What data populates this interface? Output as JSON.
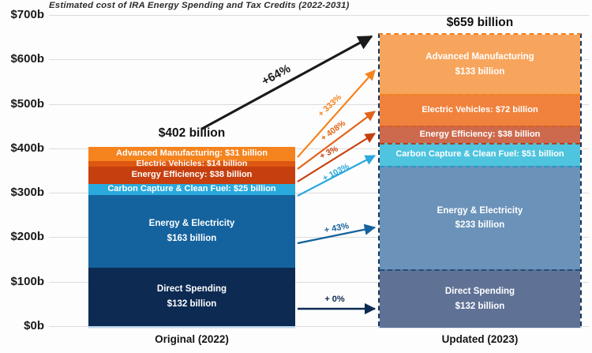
{
  "chart_data": {
    "type": "bar",
    "subtype": "stacked-bar-comparison",
    "title": "Estimated cost of IRA Energy Spending and Tax Credits (2022-2031)",
    "unit": "billions of USD",
    "categories": [
      "Original (2022)",
      "Updated (2023)"
    ],
    "y_ticks": [
      "$700b",
      "$600b",
      "$500b",
      "$400b",
      "$300b",
      "$200b",
      "$100b",
      "$0b"
    ],
    "ylim": [
      0,
      700
    ],
    "grid": true,
    "legend": "none",
    "totals": {
      "values": [
        402,
        659
      ],
      "labels": [
        "$402 billion",
        "$659 billion"
      ],
      "change_label": "+64%",
      "change_color": "#1a1a1a"
    },
    "series": [
      {
        "key": "direct-spending",
        "name": "Direct Spending",
        "values": [
          132,
          132
        ],
        "change_label": "+ 0%",
        "arrow_color": "#0D2A52",
        "colors": [
          "#0D2A52",
          "#5F7195"
        ],
        "border_right": "#17375E",
        "labels": [
          [
            "Direct Spending",
            "$132 billion"
          ],
          [
            "Direct Spending",
            "$132 billion"
          ]
        ]
      },
      {
        "key": "energy-electricity",
        "name": "Energy & Electricity",
        "values": [
          163,
          233
        ],
        "change_label": "+ 43%",
        "arrow_color": "#15639E",
        "colors": [
          "#15639E",
          "#6B93BA"
        ],
        "border_right": "#1F4E79",
        "labels": [
          [
            "Energy & Electricity",
            "$163 billion"
          ],
          [
            "Energy & Electricity",
            "$233 billion"
          ]
        ]
      },
      {
        "key": "carbon-capture-clean-fuel",
        "name": "Carbon Capture & Clean Fuel",
        "values": [
          25,
          51
        ],
        "change_label": "+ 103%",
        "arrow_color": "#2AA9DC",
        "colors": [
          "#2AA9DC",
          "#4FC4DF"
        ],
        "border_right": "#2597C4",
        "labels": [
          [
            "Carbon Capture & Clean Fuel: $25 billion"
          ],
          [
            "Carbon Capture & Clean Fuel: $51 billion"
          ]
        ]
      },
      {
        "key": "energy-efficiency",
        "name": "Energy Efficiency",
        "values": [
          38,
          38
        ],
        "change_label": "+ 3%",
        "arrow_color": "#C63F0E",
        "colors": [
          "#C63F0E",
          "#CD6A4D"
        ],
        "border_right": "#B33D20",
        "labels": [
          [
            "Energy Efficiency: $38 billion"
          ],
          [
            "Energy Efficiency: $38 billion"
          ]
        ]
      },
      {
        "key": "electric-vehicles",
        "name": "Electric Vehicles",
        "values": [
          14,
          72
        ],
        "change_label": "+ 408%",
        "arrow_color": "#E3641A",
        "colors": [
          "#DE5812",
          "#F0823D"
        ],
        "border_right": "#D95F1E",
        "labels": [
          [
            "Electric Vehicles: $14 billion"
          ],
          [
            "Electric Vehicles: $72 billion"
          ]
        ]
      },
      {
        "key": "advanced-manufacturing",
        "name": "Advanced Manufacturing",
        "values": [
          31,
          133
        ],
        "change_label": "+ 333%",
        "arrow_color": "#F5831E",
        "colors": [
          "#F5831E",
          "#F7A55C"
        ],
        "border_right": "#F08021",
        "labels": [
          [
            "Advanced Manufacturing: $31 billion"
          ],
          [
            "Advanced Manufacturing",
            "$133 billion"
          ]
        ]
      }
    ]
  }
}
